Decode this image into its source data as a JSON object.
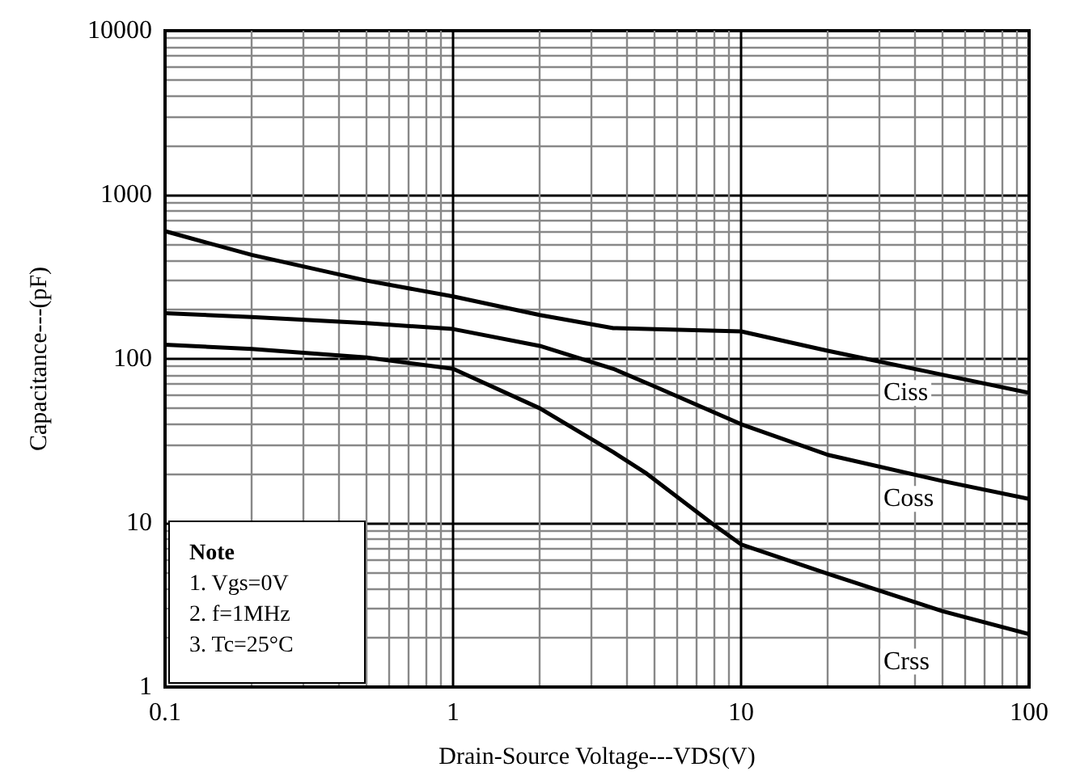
{
  "chart_data": {
    "type": "line",
    "xlabel": "Drain-Source Voltage---VDS(V)",
    "ylabel": "Capacitance---(pF)",
    "log": "xy",
    "grid": true,
    "legend": false,
    "marker": "none",
    "line_style": "solid",
    "xlim": [
      0.1,
      100
    ],
    "xticks": [
      0.1,
      1,
      10,
      100
    ],
    "ylim": [
      1,
      10000
    ],
    "yticks": [
      1,
      10,
      100,
      1000,
      10000
    ],
    "annotations": [
      "Note",
      "1. Vgs=0V",
      "2. f=1MHz",
      "3. Tc=25°C"
    ],
    "series": [
      {
        "name": "Ciss",
        "color": "#000000",
        "x": [
          0.1,
          0.2,
          0.5,
          1,
          2,
          3.6,
          10,
          20,
          50,
          100
        ],
        "values": [
          600,
          430,
          300,
          240,
          185,
          154,
          147,
          112,
          80,
          62
        ]
      },
      {
        "name": "Coss",
        "color": "#000000",
        "x": [
          0.1,
          0.2,
          0.5,
          1,
          2,
          3.6,
          5,
          10,
          20,
          50,
          100
        ],
        "values": [
          190,
          180,
          165,
          152,
          120,
          87,
          68,
          40,
          26,
          18,
          14
        ]
      },
      {
        "name": "Crss",
        "color": "#000000",
        "x": [
          0.1,
          0.2,
          0.5,
          1,
          2,
          3.6,
          4.7,
          8,
          10,
          20,
          50,
          100
        ],
        "values": [
          122,
          115,
          102,
          87,
          50,
          27,
          20,
          9.8,
          7.4,
          4.9,
          2.9,
          2.1
        ]
      }
    ]
  }
}
